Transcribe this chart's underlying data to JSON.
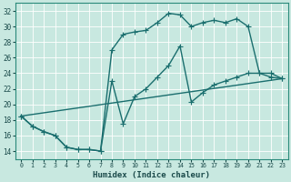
{
  "xlabel": "Humidex (Indice chaleur)",
  "bg_color": "#c8e8e0",
  "grid_color": "#b0d8d0",
  "line_color": "#1a6e6e",
  "xlim": [
    -0.5,
    23.5
  ],
  "ylim": [
    13.0,
    33.0
  ],
  "yticks": [
    14,
    16,
    18,
    20,
    22,
    24,
    26,
    28,
    30,
    32
  ],
  "xticks": [
    0,
    1,
    2,
    3,
    4,
    5,
    6,
    7,
    8,
    9,
    10,
    11,
    12,
    13,
    14,
    15,
    16,
    17,
    18,
    19,
    20,
    21,
    22,
    23
  ],
  "line1_x": [
    0,
    1,
    2,
    3,
    4,
    5,
    6,
    7,
    8,
    9,
    10,
    11,
    12,
    13,
    14,
    15,
    16,
    17,
    18,
    19,
    20,
    21,
    22,
    23
  ],
  "line1_y": [
    18.5,
    17.2,
    16.5,
    16.0,
    14.5,
    14.2,
    14.2,
    14.0,
    27.0,
    29.0,
    29.3,
    29.5,
    30.5,
    31.7,
    31.5,
    30.0,
    30.5,
    30.8,
    30.5,
    31.0,
    30.0,
    24.0,
    24.0,
    23.3
  ],
  "line2_x": [
    0,
    1,
    2,
    3,
    4,
    5,
    6,
    7,
    8,
    9,
    10,
    11,
    12,
    13,
    14,
    15,
    16,
    17,
    18,
    19,
    20,
    21,
    22,
    23
  ],
  "line2_y": [
    18.5,
    17.2,
    16.5,
    16.0,
    14.5,
    14.2,
    14.2,
    14.0,
    23.0,
    17.5,
    21.0,
    22.0,
    23.5,
    25.0,
    27.5,
    20.3,
    21.5,
    22.5,
    23.0,
    23.5,
    24.0,
    24.0,
    23.5,
    23.3
  ],
  "line3_x": [
    0,
    23
  ],
  "line3_y": [
    18.5,
    23.3
  ]
}
